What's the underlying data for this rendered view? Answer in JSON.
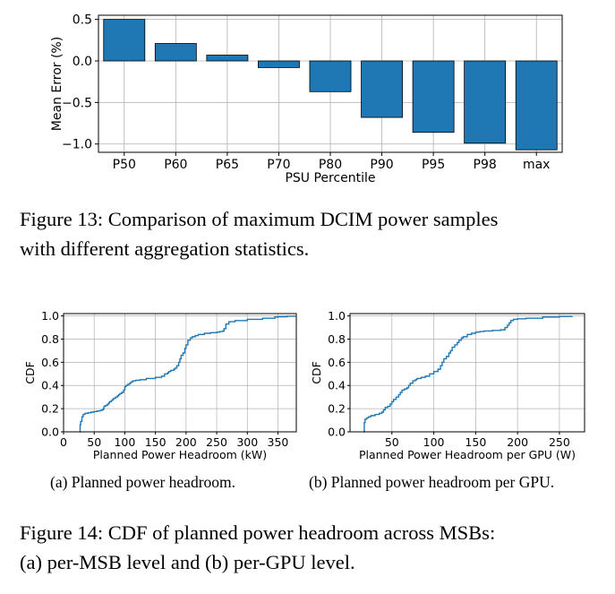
{
  "figure13": {
    "caption_line1": "Figure 13: Comparison of maximum DCIM power samples",
    "caption_line2": "with different aggregation statistics.",
    "chart_data": {
      "type": "bar",
      "categories": [
        "P50",
        "P60",
        "P65",
        "P70",
        "P80",
        "P90",
        "P95",
        "P98",
        "max"
      ],
      "values": [
        0.5,
        0.21,
        0.07,
        -0.08,
        -0.37,
        -0.68,
        -0.86,
        -0.99,
        -1.07
      ],
      "xlabel": "PSU Percentile",
      "ylabel": "Mean Error (%)",
      "ylim": [
        -1.1,
        0.55
      ],
      "yticks": [
        0.5,
        0.0,
        -0.5,
        -1.0
      ],
      "ytick_labels": [
        "0.5",
        "0.0",
        "−0.5",
        "−1.0"
      ],
      "grid": true,
      "bar_color": "#1f77b4"
    }
  },
  "figure14": {
    "caption_line1": "Figure 14: CDF of planned power headroom across MSBs:",
    "caption_line2": "(a) per-MSB level and (b) per-GPU level.",
    "subfigures": [
      {
        "caption": "(a) Planned power headroom.",
        "chart_data": {
          "type": "line",
          "xlabel": "Planned Power Headroom (kW)",
          "ylabel": "CDF",
          "xlim": [
            0,
            380
          ],
          "ylim": [
            0,
            1.02
          ],
          "xticks": [
            0,
            50,
            100,
            150,
            200,
            250,
            300,
            350
          ],
          "yticks": [
            0.0,
            0.2,
            0.4,
            0.6,
            0.8,
            1.0
          ],
          "ytick_labels": [
            "0.0",
            "0.2",
            "0.4",
            "0.6",
            "0.8",
            "1.0"
          ],
          "grid": true,
          "line_color": "#1f77b4",
          "series": [
            {
              "x": [
                26,
                27,
                28,
                30,
                32,
                35,
                40,
                45,
                50,
                55,
                60,
                63,
                65,
                66,
                68,
                70,
                72,
                74,
                75,
                78,
                80,
                82,
                85,
                88,
                90,
                92,
                95,
                98,
                100,
                102,
                105,
                108,
                110,
                113,
                118,
                125,
                135,
                150,
                160,
                165,
                170,
                172,
                175,
                180,
                182,
                185,
                188,
                190,
                192,
                195,
                198,
                200,
                203,
                207,
                210,
                215,
                220,
                230,
                240,
                250,
                255,
                260,
                262,
                265,
                270,
                280,
                300,
                325,
                345,
                350,
                365,
                378
              ],
              "y": [
                0.0,
                0.06,
                0.09,
                0.13,
                0.15,
                0.16,
                0.165,
                0.17,
                0.175,
                0.18,
                0.185,
                0.19,
                0.2,
                0.22,
                0.225,
                0.23,
                0.24,
                0.25,
                0.26,
                0.27,
                0.28,
                0.29,
                0.3,
                0.31,
                0.32,
                0.33,
                0.34,
                0.36,
                0.39,
                0.4,
                0.41,
                0.42,
                0.43,
                0.44,
                0.445,
                0.45,
                0.46,
                0.47,
                0.48,
                0.5,
                0.51,
                0.52,
                0.53,
                0.54,
                0.55,
                0.57,
                0.6,
                0.63,
                0.66,
                0.68,
                0.72,
                0.75,
                0.79,
                0.81,
                0.82,
                0.83,
                0.84,
                0.85,
                0.855,
                0.86,
                0.865,
                0.87,
                0.89,
                0.93,
                0.95,
                0.96,
                0.97,
                0.98,
                0.99,
                0.993,
                0.997,
                1.0
              ]
            }
          ]
        }
      },
      {
        "caption": "(b) Planned power headroom per GPU.",
        "chart_data": {
          "type": "line",
          "xlabel": "Planned Power Headroom per GPU (W)",
          "ylabel": "CDF",
          "xlim": [
            0,
            280
          ],
          "ylim": [
            0,
            1.02
          ],
          "xticks": [
            50,
            100,
            150,
            200,
            250
          ],
          "yticks": [
            0.0,
            0.2,
            0.4,
            0.6,
            0.8,
            1.0
          ],
          "ytick_labels": [
            "0.0",
            "0.2",
            "0.4",
            "0.6",
            "0.8",
            "1.0"
          ],
          "grid": true,
          "line_color": "#1f77b4",
          "series": [
            {
              "x": [
                16,
                17,
                18,
                20,
                22,
                25,
                30,
                35,
                38,
                40,
                42,
                45,
                48,
                50,
                52,
                55,
                58,
                60,
                62,
                65,
                68,
                70,
                72,
                75,
                78,
                80,
                85,
                90,
                95,
                100,
                105,
                108,
                110,
                112,
                115,
                118,
                120,
                122,
                125,
                128,
                130,
                133,
                135,
                140,
                145,
                150,
                155,
                160,
                170,
                180,
                185,
                188,
                190,
                192,
                195,
                200,
                210,
                230,
                250,
                265
              ],
              "y": [
                0.0,
                0.08,
                0.11,
                0.12,
                0.13,
                0.14,
                0.15,
                0.16,
                0.17,
                0.19,
                0.21,
                0.22,
                0.24,
                0.26,
                0.28,
                0.3,
                0.32,
                0.34,
                0.36,
                0.37,
                0.38,
                0.4,
                0.42,
                0.44,
                0.45,
                0.46,
                0.47,
                0.48,
                0.5,
                0.52,
                0.54,
                0.57,
                0.6,
                0.63,
                0.65,
                0.68,
                0.7,
                0.73,
                0.75,
                0.77,
                0.79,
                0.81,
                0.82,
                0.84,
                0.85,
                0.86,
                0.865,
                0.87,
                0.875,
                0.88,
                0.9,
                0.92,
                0.94,
                0.96,
                0.97,
                0.975,
                0.98,
                0.99,
                0.995,
                1.0
              ]
            }
          ]
        }
      }
    ]
  }
}
